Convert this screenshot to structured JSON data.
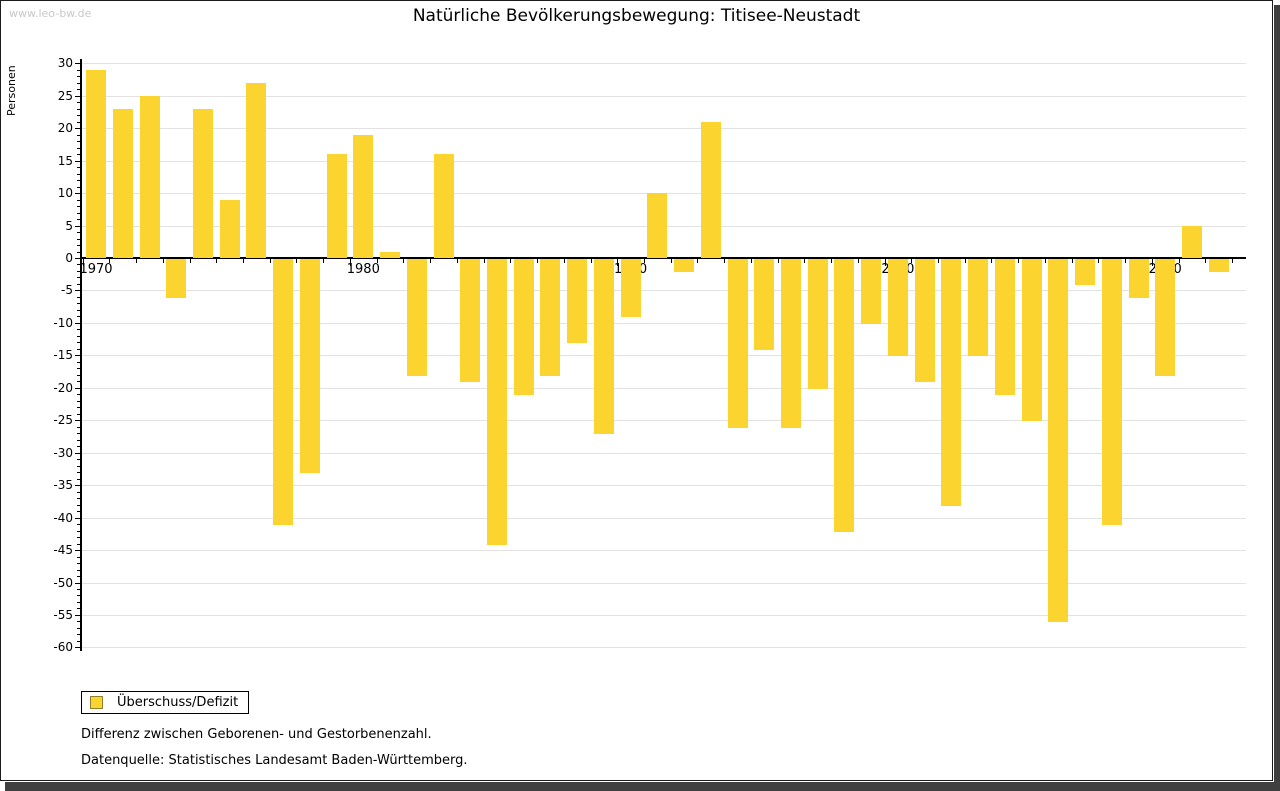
{
  "watermark": "www.leo-bw.de",
  "title": "Natürliche Bevölkerungsbewegung: Titisee-Neustadt",
  "legend": {
    "label": "Überschuss/Defizit"
  },
  "footnotes": {
    "line1": "Differenz zwischen Geborenen- und Gestorbenenzahl.",
    "line2": "Datenquelle: Statistisches Landesamt Baden-Württemberg."
  },
  "colors": {
    "bar": "#fcd42f",
    "swatch_border": "#8f8130",
    "grid": "#e2e2e2",
    "axis": "#000000",
    "watermark": "#c9c9c9",
    "shadow": "#3f3f3f"
  },
  "chart_data": {
    "type": "bar",
    "title": "Natürliche Bevölkerungsbewegung: Titisee-Neustadt",
    "xlabel": "",
    "ylabel": "Personen",
    "ylim": [
      -60,
      30
    ],
    "ytick_step": 5,
    "grid": true,
    "legend_position": "bottom-left",
    "xticks_labeled": [
      1970,
      1980,
      1990,
      2000,
      2010
    ],
    "categories": [
      1970,
      1971,
      1972,
      1973,
      1974,
      1975,
      1976,
      1977,
      1978,
      1979,
      1980,
      1981,
      1982,
      1983,
      1984,
      1985,
      1986,
      1987,
      1988,
      1989,
      1990,
      1991,
      1992,
      1993,
      1994,
      1995,
      1996,
      1997,
      1998,
      1999,
      2000,
      2001,
      2002,
      2003,
      2004,
      2005,
      2006,
      2007,
      2008,
      2009,
      2010,
      2011,
      2012
    ],
    "series": [
      {
        "name": "Überschuss/Defizit",
        "values": [
          29,
          23,
          25,
          -6,
          23,
          9,
          27,
          -41,
          -33,
          16,
          19,
          1,
          -18,
          16,
          -19,
          -44,
          -21,
          -18,
          -13,
          -27,
          -9,
          10,
          -2,
          21,
          -26,
          -14,
          -26,
          -20,
          -42,
          -10,
          -15,
          -19,
          -38,
          -15,
          -21,
          -25,
          -56,
          -4,
          -41,
          -6,
          -18,
          5,
          -2
        ]
      }
    ]
  }
}
